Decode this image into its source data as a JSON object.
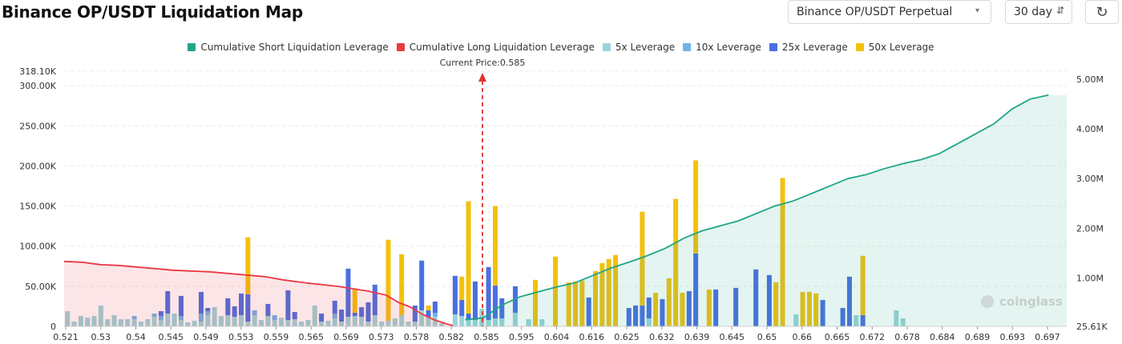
{
  "header": {
    "title": "Binance OP/USDT Liquidation Map",
    "pair_select": "Binance OP/USDT Perpetual",
    "range_select": "30 day",
    "refresh_icon": "refresh-icon"
  },
  "colors": {
    "short_cum": "#1fa589",
    "long_cum": "#ea3943",
    "lev5": "#9ad4d8",
    "lev10": "#6fb3e6",
    "lev25": "#4a6fe0",
    "lev50": "#f2c10f",
    "price_line": "#e0322f"
  },
  "chart_data": {
    "type": "bar",
    "legend": [
      {
        "name": "Cumulative Short Liquidation Leverage",
        "color": "#1fa589"
      },
      {
        "name": "Cumulative Long Liquidation Leverage",
        "color": "#ea3943"
      },
      {
        "name": "5x Leverage",
        "color": "#9ad4d8"
      },
      {
        "name": "10x Leverage",
        "color": "#6fb3e6"
      },
      {
        "name": "25x Leverage",
        "color": "#4a6fe0"
      },
      {
        "name": "50x Leverage",
        "color": "#f2c10f"
      }
    ],
    "current_price_label": "Current Price:0.585",
    "current_price": 0.585,
    "x_ticks": [
      "0.521",
      "0.53",
      "0.54",
      "0.545",
      "0.549",
      "0.553",
      "0.559",
      "0.565",
      "0.569",
      "0.573",
      "0.578",
      "0.582",
      "0.585",
      "0.595",
      "0.604",
      "0.616",
      "0.625",
      "0.632",
      "0.639",
      "0.645",
      "0.65",
      "0.66",
      "0.665",
      "0.672",
      "0.678",
      "0.684",
      "0.689",
      "0.693",
      "0.697"
    ],
    "y_left_ticks": [
      "0",
      "50.00K",
      "100.00K",
      "150.00K",
      "200.00K",
      "250.00K",
      "300.00K",
      "318.10K"
    ],
    "y_left_values": [
      0,
      50000,
      100000,
      150000,
      200000,
      250000,
      300000,
      318100
    ],
    "y_left_range": [
      0,
      318100
    ],
    "y_right_ticks": [
      "25.61K",
      "1.00M",
      "2.00M",
      "3.00M",
      "4.00M",
      "5.00M"
    ],
    "y_right_values": [
      25610,
      1000000,
      2000000,
      3000000,
      4000000,
      5000000
    ],
    "y_right_range": [
      25610,
      5000000
    ],
    "watermark": "coinglass",
    "bar_values": [
      [
        19,
        0,
        0,
        0
      ],
      [
        6,
        0,
        0,
        0
      ],
      [
        13,
        0,
        0,
        0
      ],
      [
        11,
        0,
        0,
        0
      ],
      [
        13,
        0,
        0,
        0
      ],
      [
        26,
        0,
        0,
        0
      ],
      [
        9,
        0,
        0,
        0
      ],
      [
        14,
        0,
        0,
        0
      ],
      [
        9,
        0,
        0,
        0
      ],
      [
        9,
        0,
        0,
        0
      ],
      [
        9,
        4,
        0,
        0
      ],
      [
        6,
        0,
        0,
        0
      ],
      [
        9,
        0,
        0,
        0
      ],
      [
        12,
        4,
        0,
        0
      ],
      [
        8,
        5,
        6,
        0
      ],
      [
        16,
        0,
        28,
        0
      ],
      [
        16,
        0,
        0,
        0
      ],
      [
        8,
        5,
        25,
        0
      ],
      [
        5,
        0,
        0,
        0
      ],
      [
        7,
        0,
        0,
        0
      ],
      [
        6,
        10,
        27,
        0
      ],
      [
        14,
        5,
        4,
        0
      ],
      [
        24,
        0,
        0,
        0
      ],
      [
        13,
        0,
        0,
        0
      ],
      [
        14,
        0,
        21,
        0
      ],
      [
        12,
        0,
        13,
        0
      ],
      [
        14,
        0,
        27,
        0
      ],
      [
        6,
        0,
        34,
        71
      ],
      [
        14,
        6,
        0,
        0
      ],
      [
        8,
        0,
        0,
        0
      ],
      [
        13,
        0,
        15,
        0
      ],
      [
        8,
        6,
        0,
        0
      ],
      [
        11,
        0,
        0,
        0
      ],
      [
        8,
        0,
        37,
        0
      ],
      [
        9,
        0,
        9,
        0
      ],
      [
        6,
        0,
        0,
        0
      ],
      [
        8,
        0,
        0,
        0
      ],
      [
        26,
        0,
        0,
        0
      ],
      [
        6,
        0,
        10,
        0
      ],
      [
        7,
        0,
        0,
        0
      ],
      [
        10,
        6,
        16,
        0
      ],
      [
        6,
        0,
        15,
        0
      ],
      [
        12,
        0,
        60,
        0
      ],
      [
        13,
        0,
        4,
        29
      ],
      [
        12,
        0,
        12,
        0
      ],
      [
        6,
        0,
        24,
        0
      ],
      [
        14,
        0,
        38,
        0
      ],
      [
        6,
        0,
        0,
        0
      ],
      [
        7,
        0,
        0,
        101
      ],
      [
        10,
        0,
        0,
        0
      ],
      [
        14,
        0,
        0,
        76
      ],
      [
        6,
        0,
        0,
        0
      ],
      [
        6,
        0,
        20,
        0
      ],
      [
        20,
        0,
        62,
        0
      ],
      [
        12,
        0,
        8,
        6
      ],
      [
        12,
        5,
        14,
        0
      ],
      [
        4,
        0,
        0,
        0
      ],
      [
        0,
        0,
        0,
        0
      ],
      [
        15,
        0,
        48,
        0
      ],
      [
        13,
        0,
        20,
        29
      ],
      [
        8,
        0,
        8,
        140
      ],
      [
        8,
        0,
        48,
        0
      ],
      [
        22,
        0,
        0,
        0
      ],
      [
        8,
        0,
        66,
        0
      ],
      [
        10,
        0,
        41,
        99
      ],
      [
        10,
        0,
        25,
        0
      ],
      [
        0,
        0,
        0,
        0
      ],
      [
        17,
        0,
        33,
        0
      ],
      [
        0,
        0,
        0,
        0
      ],
      [
        9,
        0,
        0,
        0
      ],
      [
        0,
        0,
        0,
        58
      ],
      [
        9,
        0,
        0,
        0
      ],
      [
        0,
        0,
        0,
        0
      ],
      [
        0,
        0,
        0,
        87
      ],
      [
        0,
        0,
        0,
        0
      ],
      [
        0,
        0,
        0,
        55
      ],
      [
        0,
        0,
        0,
        56
      ],
      [
        0,
        0,
        0,
        57
      ],
      [
        0,
        0,
        36,
        0
      ],
      [
        0,
        0,
        0,
        69
      ],
      [
        0,
        0,
        0,
        79
      ],
      [
        0,
        0,
        0,
        84
      ],
      [
        0,
        0,
        0,
        89
      ],
      [
        0,
        0,
        0,
        0
      ],
      [
        0,
        0,
        23,
        0
      ],
      [
        0,
        0,
        26,
        0
      ],
      [
        0,
        0,
        26,
        117
      ],
      [
        10,
        0,
        26,
        0
      ],
      [
        0,
        0,
        0,
        42
      ],
      [
        0,
        0,
        34,
        0
      ],
      [
        0,
        0,
        0,
        60
      ],
      [
        0,
        0,
        0,
        159
      ],
      [
        0,
        0,
        0,
        42
      ],
      [
        0,
        0,
        44,
        0
      ],
      [
        0,
        0,
        91,
        116
      ],
      [
        0,
        0,
        0,
        0
      ],
      [
        0,
        0,
        0,
        46
      ],
      [
        0,
        0,
        46,
        0
      ],
      [
        0,
        0,
        0,
        0
      ],
      [
        0,
        0,
        0,
        0
      ],
      [
        0,
        0,
        48,
        0
      ],
      [
        0,
        0,
        0,
        0
      ],
      [
        0,
        0,
        0,
        0
      ],
      [
        0,
        0,
        71,
        0
      ],
      [
        0,
        0,
        0,
        0
      ],
      [
        0,
        0,
        64,
        0
      ],
      [
        0,
        0,
        0,
        55
      ],
      [
        0,
        0,
        0,
        185
      ],
      [
        0,
        0,
        0,
        0
      ],
      [
        15,
        0,
        0,
        0
      ],
      [
        0,
        0,
        0,
        43
      ],
      [
        0,
        0,
        0,
        43
      ],
      [
        0,
        0,
        0,
        41
      ],
      [
        0,
        0,
        33,
        0
      ],
      [
        0,
        0,
        0,
        0
      ],
      [
        0,
        0,
        0,
        0
      ],
      [
        0,
        0,
        23,
        0
      ],
      [
        0,
        0,
        62,
        0
      ],
      [
        14,
        0,
        0,
        0
      ],
      [
        0,
        0,
        14,
        74
      ],
      [
        0,
        0,
        0,
        0
      ],
      [
        0,
        0,
        0,
        0
      ],
      [
        0,
        0,
        0,
        0
      ],
      [
        0,
        0,
        0,
        0
      ],
      [
        20,
        0,
        0,
        0
      ],
      [
        10,
        0,
        0,
        0
      ],
      [
        0,
        0,
        0,
        0
      ],
      [
        0,
        0,
        0,
        0
      ],
      [
        0,
        0,
        0,
        0
      ],
      [
        0,
        0,
        0,
        0
      ],
      [
        0,
        0,
        0,
        0
      ],
      [
        0,
        0,
        0,
        0
      ],
      [
        0,
        0,
        0,
        0
      ],
      [
        0,
        0,
        0,
        0
      ],
      [
        0,
        0,
        0,
        0
      ],
      [
        0,
        0,
        0,
        0
      ],
      [
        0,
        0,
        0,
        0
      ],
      [
        0,
        0,
        0,
        0
      ],
      [
        0,
        0,
        0,
        0
      ],
      [
        0,
        0,
        0,
        0
      ],
      [
        0,
        0,
        0,
        0
      ],
      [
        0,
        0,
        0,
        0
      ],
      [
        0,
        0,
        0,
        0
      ],
      [
        0,
        0,
        0,
        0
      ],
      [
        0,
        0,
        0,
        0
      ],
      [
        0,
        0,
        0,
        0
      ],
      [
        0,
        0,
        0,
        0
      ],
      [
        0,
        0,
        0,
        0
      ],
      [
        0,
        0,
        0,
        0
      ],
      [
        0,
        0,
        0,
        0
      ]
    ],
    "long_cum_points": [
      [
        0,
        81
      ],
      [
        3,
        80
      ],
      [
        6,
        77
      ],
      [
        9,
        76
      ],
      [
        12,
        74
      ],
      [
        15,
        72
      ],
      [
        18,
        70
      ],
      [
        21,
        69
      ],
      [
        24,
        68
      ],
      [
        27,
        66
      ],
      [
        30,
        64
      ],
      [
        33,
        62
      ],
      [
        36,
        58
      ],
      [
        40,
        54
      ],
      [
        45,
        50
      ],
      [
        50,
        44
      ],
      [
        53,
        39
      ],
      [
        55,
        30
      ],
      [
        57,
        24
      ],
      [
        59,
        15
      ],
      [
        61,
        8
      ],
      [
        63,
        3
      ],
      [
        64,
        1
      ]
    ],
    "short_cum_points": [
      [
        66,
        0.16
      ],
      [
        69,
        0.2
      ],
      [
        72,
        0.45
      ],
      [
        75,
        0.62
      ],
      [
        78,
        0.72
      ],
      [
        81,
        0.82
      ],
      [
        84,
        0.9
      ],
      [
        87,
        1.05
      ],
      [
        90,
        1.2
      ],
      [
        93,
        1.32
      ],
      [
        96,
        1.45
      ],
      [
        99,
        1.6
      ],
      [
        102,
        1.8
      ],
      [
        105,
        1.95
      ],
      [
        108,
        2.05
      ],
      [
        111,
        2.15
      ],
      [
        114,
        2.3
      ],
      [
        117,
        2.45
      ],
      [
        120,
        2.55
      ],
      [
        123,
        2.7
      ],
      [
        126,
        2.85
      ],
      [
        129,
        3.0
      ],
      [
        132,
        3.08
      ],
      [
        135,
        3.2
      ],
      [
        138,
        3.3
      ],
      [
        141,
        3.38
      ],
      [
        144,
        3.5
      ],
      [
        147,
        3.7
      ],
      [
        150,
        3.9
      ],
      [
        153,
        4.1
      ],
      [
        156,
        4.4
      ],
      [
        159,
        4.6
      ],
      [
        162,
        4.68
      ]
    ]
  }
}
